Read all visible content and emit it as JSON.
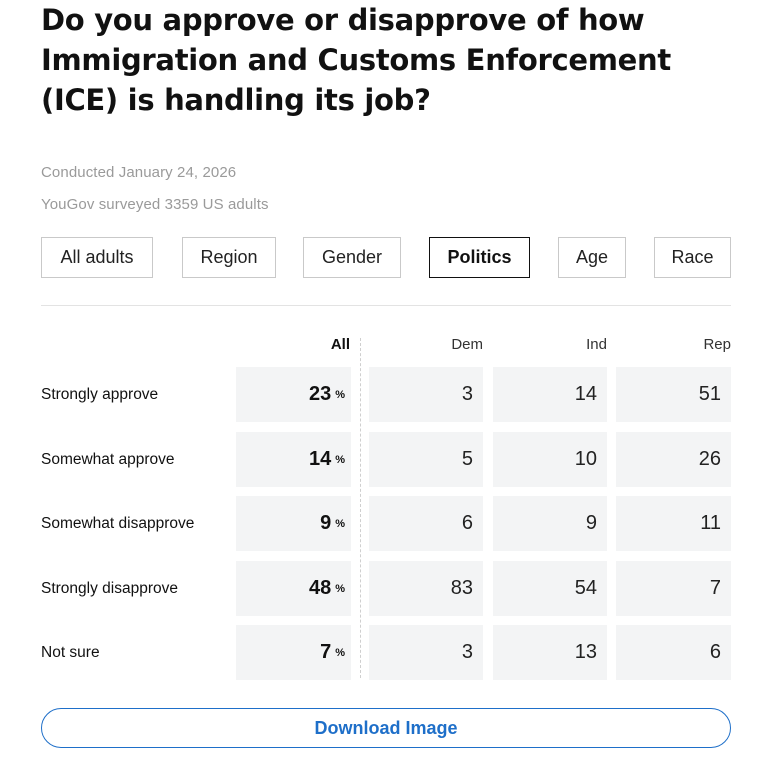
{
  "header": {
    "title": "Do you approve or disapprove of how Immigration and Customs Enforcement (ICE) is handling its job?",
    "conducted": "Conducted January 24, 2026",
    "sample": "YouGov surveyed 3359 US adults"
  },
  "tabs": [
    {
      "label": "All adults",
      "active": false
    },
    {
      "label": "Region",
      "active": false
    },
    {
      "label": "Gender",
      "active": false
    },
    {
      "label": "Politics",
      "active": true
    },
    {
      "label": "Age",
      "active": false
    },
    {
      "label": "Race",
      "active": false
    }
  ],
  "download_label": "Download Image",
  "chart_data": {
    "type": "table",
    "columns": [
      "All",
      "Dem",
      "Ind",
      "Rep"
    ],
    "percent_symbol": "%",
    "rows": [
      {
        "label": "Strongly approve",
        "values": [
          23,
          3,
          14,
          51
        ]
      },
      {
        "label": "Somewhat approve",
        "values": [
          14,
          5,
          10,
          26
        ]
      },
      {
        "label": "Somewhat disapprove",
        "values": [
          9,
          6,
          9,
          11
        ]
      },
      {
        "label": "Strongly disapprove",
        "values": [
          48,
          83,
          54,
          7
        ]
      },
      {
        "label": "Not sure",
        "values": [
          7,
          3,
          13,
          6
        ]
      }
    ]
  },
  "colors": {
    "accent": "#1e6fc9",
    "cell_bg": "#f3f4f5",
    "muted_text": "#9a9a9a"
  }
}
